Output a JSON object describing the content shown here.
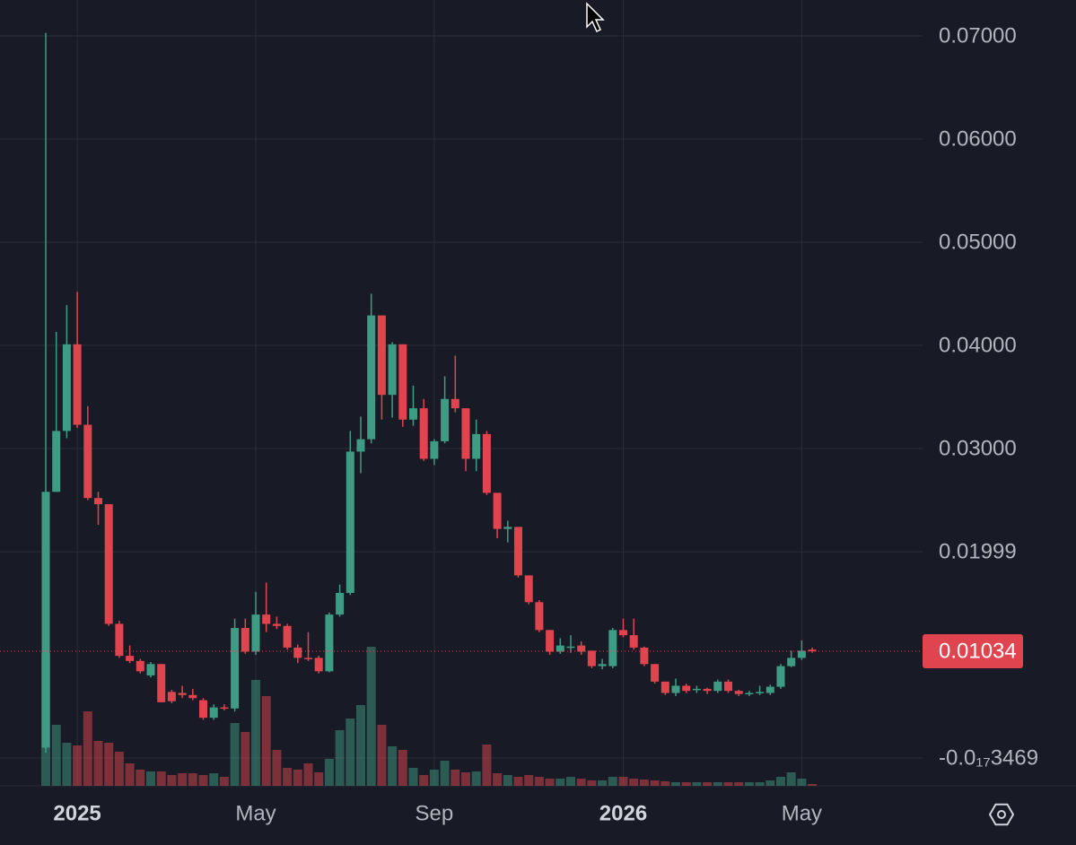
{
  "chart_data": {
    "type": "candlestick",
    "categories": [
      null,
      null,
      null,
      "2025",
      null,
      null,
      null,
      null,
      null,
      null,
      null,
      null,
      null,
      null,
      null,
      null,
      null,
      null,
      null,
      null,
      "May",
      null,
      null,
      null,
      null,
      null,
      null,
      null,
      null,
      null,
      null,
      null,
      null,
      null,
      null,
      null,
      null,
      "Sep",
      null,
      null,
      null,
      null,
      null,
      null,
      null,
      null,
      null,
      null,
      null,
      null,
      null,
      null,
      null,
      null,
      null,
      "2026",
      null,
      null,
      null,
      null,
      null,
      null,
      null,
      null,
      null,
      null,
      null,
      null,
      null,
      null,
      null,
      null,
      "May",
      null
    ],
    "open": [
      0.001,
      0.0258,
      0.0317,
      0.0401,
      0.0323,
      0.0252,
      0.0246,
      0.013,
      0.0099,
      0.0094,
      0.008,
      0.0091,
      0.0064,
      0.0063,
      0.0061,
      0.0056,
      0.0039,
      0.0049,
      0.0048,
      0.0126,
      0.0103,
      0.0139,
      0.013,
      0.0128,
      0.0107,
      0.0097,
      0.0097,
      0.0084,
      0.0139,
      0.016,
      0.0297,
      0.0309,
      0.0429,
      0.0352,
      0.0401,
      0.0328,
      0.0339,
      0.029,
      0.0307,
      0.0348,
      0.0339,
      0.029,
      0.0314,
      0.0257,
      0.0222,
      0.0224,
      0.0177,
      0.0151,
      0.0124,
      0.0103,
      0.0107,
      0.0109,
      0.0104,
      0.0089,
      0.0089,
      0.0124,
      0.0119,
      0.0107,
      0.0091,
      0.0074,
      0.0063,
      0.007,
      0.0066,
      0.0067,
      0.0065,
      0.0074,
      0.0065,
      0.0062,
      0.0063,
      0.0063,
      0.0069,
      0.0089,
      0.0097,
      0.0105
    ],
    "high": [
      0.0703,
      0.0413,
      0.0439,
      0.0452,
      0.0341,
      0.0258,
      0.0246,
      0.0133,
      0.0109,
      0.0096,
      0.0093,
      0.0091,
      0.0066,
      0.007,
      0.0067,
      0.0058,
      0.0052,
      0.0052,
      0.0135,
      0.0135,
      0.0161,
      0.017,
      0.0137,
      0.013,
      0.011,
      0.0122,
      0.0099,
      0.0141,
      0.0168,
      0.0317,
      0.0331,
      0.045,
      0.0429,
      0.0403,
      0.0401,
      0.0361,
      0.0348,
      0.0309,
      0.037,
      0.039,
      0.0339,
      0.0328,
      0.0317,
      0.0257,
      0.023,
      0.0224,
      0.0177,
      0.0153,
      0.0124,
      0.0116,
      0.0119,
      0.0113,
      0.0104,
      0.0096,
      0.0126,
      0.0135,
      0.0135,
      0.0108,
      0.0091,
      0.0074,
      0.0077,
      0.0072,
      0.007,
      0.0068,
      0.0076,
      0.0076,
      0.0066,
      0.0065,
      0.007,
      0.0071,
      0.0091,
      0.0104,
      0.0114,
      0.0107
    ],
    "low": [
      0.0005,
      0.0258,
      0.031,
      0.032,
      0.025,
      0.0226,
      0.0128,
      0.0097,
      0.0092,
      0.0082,
      0.0078,
      0.0054,
      0.0053,
      0.0058,
      0.0056,
      0.0037,
      0.0037,
      0.0046,
      0.0045,
      0.0101,
      0.01,
      0.0122,
      0.0125,
      0.0105,
      0.0092,
      0.0094,
      0.0082,
      0.0083,
      0.0137,
      0.0158,
      0.0276,
      0.0305,
      0.0328,
      0.033,
      0.0321,
      0.0322,
      0.0288,
      0.0284,
      0.0305,
      0.0335,
      0.0278,
      0.0278,
      0.0255,
      0.0213,
      0.0209,
      0.0175,
      0.0149,
      0.0122,
      0.01,
      0.0101,
      0.0102,
      0.01,
      0.0087,
      0.0086,
      0.0087,
      0.0117,
      0.0105,
      0.0089,
      0.0072,
      0.0061,
      0.006,
      0.0063,
      0.0063,
      0.0062,
      0.0063,
      0.0063,
      0.006,
      0.006,
      0.0061,
      0.0061,
      0.0067,
      0.0088,
      0.0095,
      0.0102
    ],
    "close": [
      0.0258,
      0.0317,
      0.0401,
      0.0323,
      0.0252,
      0.0246,
      0.013,
      0.0099,
      0.0094,
      0.0084,
      0.0091,
      0.0054,
      0.0055,
      0.0061,
      0.0058,
      0.0039,
      0.0049,
      0.0048,
      0.0126,
      0.0103,
      0.0139,
      0.013,
      0.0128,
      0.0107,
      0.0097,
      0.0096,
      0.0084,
      0.0139,
      0.016,
      0.0297,
      0.0309,
      0.0429,
      0.0352,
      0.0401,
      0.0328,
      0.0339,
      0.029,
      0.0307,
      0.0348,
      0.0339,
      0.029,
      0.0314,
      0.0257,
      0.0222,
      0.0224,
      0.0177,
      0.0151,
      0.0124,
      0.0103,
      0.0109,
      0.0108,
      0.0103,
      0.0089,
      0.0091,
      0.0124,
      0.0119,
      0.0107,
      0.0091,
      0.0074,
      0.0063,
      0.007,
      0.0065,
      0.0067,
      0.0065,
      0.0074,
      0.0065,
      0.0062,
      0.0063,
      0.0064,
      0.0069,
      0.0089,
      0.0097,
      0.0104,
      0.01034
    ],
    "volume": [
      148,
      68,
      48,
      45,
      83,
      50,
      48,
      38,
      25,
      18,
      16,
      16,
      12,
      14,
      14,
      12,
      14,
      10,
      70,
      60,
      118,
      100,
      40,
      20,
      18,
      25,
      15,
      30,
      62,
      75,
      90,
      155,
      68,
      44,
      40,
      20,
      12,
      18,
      28,
      18,
      15,
      16,
      46,
      14,
      12,
      10,
      12,
      10,
      8,
      8,
      10,
      8,
      6,
      6,
      10,
      10,
      8,
      7,
      6,
      5,
      4,
      4,
      4,
      4,
      4,
      4,
      4,
      4,
      4,
      6,
      10,
      15,
      8,
      2
    ],
    "up_color": "#3f9c84",
    "down_color": "#e0454f",
    "ylim": [
      -0.0027,
      0.07348
    ],
    "yticks": [
      {
        "value": -3.469e-18,
        "label": "-0.0₁₇3469"
      },
      {
        "value": 0.01999,
        "label": "0.01999"
      },
      {
        "value": 0.03,
        "label": "0.03000"
      },
      {
        "value": 0.04,
        "label": "0.04000"
      },
      {
        "value": 0.05,
        "label": "0.05000"
      },
      {
        "value": 0.06,
        "label": "0.06000"
      },
      {
        "value": 0.07,
        "label": "0.07000"
      }
    ],
    "last_price": 0.01034,
    "grid": true
  }
}
